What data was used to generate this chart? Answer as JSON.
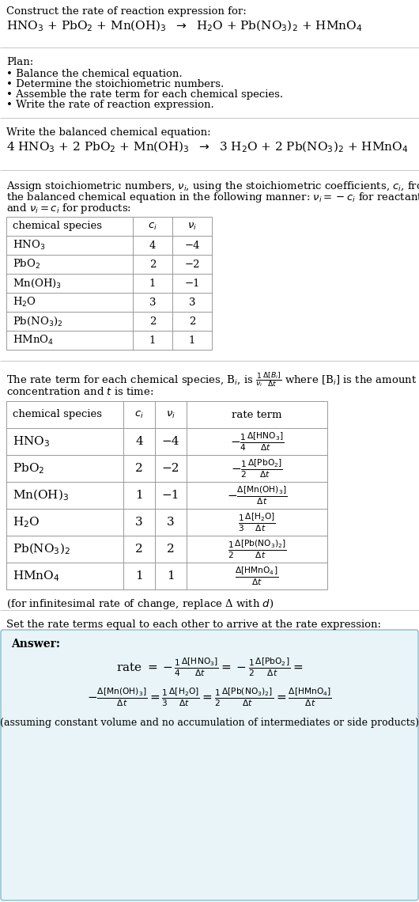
{
  "bg_color": "#ffffff",
  "answer_box_color": "#e8f4f8",
  "answer_box_border": "#88bbcc",
  "section_line_color": "#cccccc",
  "table_line_color": "#999999",
  "font_family": "DejaVu Serif",
  "base_font_size": 9.5,
  "title": "Construct the rate of reaction expression for:",
  "unbalanced_reaction": "HNO$_3$ + PbO$_2$ + Mn(OH)$_3$  $\\rightarrow$  H$_2$O + Pb(NO$_3$)$_2$ + HMnO$_4$",
  "plan_header": "Plan:",
  "plan_items": [
    "• Balance the chemical equation.",
    "• Determine the stoichiometric numbers.",
    "• Assemble the rate term for each chemical species.",
    "• Write the rate of reaction expression."
  ],
  "balanced_header": "Write the balanced chemical equation:",
  "balanced_reaction": "4 HNO$_3$ + 2 PbO$_2$ + Mn(OH)$_3$  $\\rightarrow$  3 H$_2$O + 2 Pb(NO$_3$)$_2$ + HMnO$_4$",
  "stoich_para": [
    "Assign stoichiometric numbers, $\\nu_i$, using the stoichiometric coefficients, $c_i$, from",
    "the balanced chemical equation in the following manner: $\\nu_i = -c_i$ for reactants",
    "and $\\nu_i = c_i$ for products:"
  ],
  "table1_headers": [
    "chemical species",
    "$c_i$",
    "$\\nu_i$"
  ],
  "table1_rows": [
    [
      "HNO$_3$",
      "4",
      "−4"
    ],
    [
      "PbO$_2$",
      "2",
      "−2"
    ],
    [
      "Mn(OH)$_3$",
      "1",
      "−1"
    ],
    [
      "H$_2$O",
      "3",
      "3"
    ],
    [
      "Pb(NO$_3$)$_2$",
      "2",
      "2"
    ],
    [
      "HMnO$_4$",
      "1",
      "1"
    ]
  ],
  "rate_para": [
    "The rate term for each chemical species, B$_i$, is $\\frac{1}{\\nu_i}\\frac{\\Delta[B_i]}{\\Delta t}$ where [B$_i$] is the amount",
    "concentration and $t$ is time:"
  ],
  "table2_headers": [
    "chemical species",
    "$c_i$",
    "$\\nu_i$",
    "rate term"
  ],
  "table2_rows": [
    [
      "HNO$_3$",
      "4",
      "−4",
      "$-\\frac{1}{4}\\frac{\\Delta[\\mathrm{HNO_3}]}{\\Delta t}$"
    ],
    [
      "PbO$_2$",
      "2",
      "−2",
      "$-\\frac{1}{2}\\frac{\\Delta[\\mathrm{PbO_2}]}{\\Delta t}$"
    ],
    [
      "Mn(OH)$_3$",
      "1",
      "−1",
      "$-\\frac{\\Delta[\\mathrm{Mn(OH)_3}]}{\\Delta t}$"
    ],
    [
      "H$_2$O",
      "3",
      "3",
      "$\\frac{1}{3}\\frac{\\Delta[\\mathrm{H_2O}]}{\\Delta t}$"
    ],
    [
      "Pb(NO$_3$)$_2$",
      "2",
      "2",
      "$\\frac{1}{2}\\frac{\\Delta[\\mathrm{Pb(NO_3)_2}]}{\\Delta t}$"
    ],
    [
      "HMnO$_4$",
      "1",
      "1",
      "$\\frac{\\Delta[\\mathrm{HMnO_4}]}{\\Delta t}$"
    ]
  ],
  "infinitesimal_note": "(for infinitesimal rate of change, replace Δ with $d$)",
  "set_equal_text": "Set the rate terms equal to each other to arrive at the rate expression:",
  "answer_label": "Answer:",
  "answer_rate_line1": "rate $= -\\frac{1}{4}\\frac{\\Delta[\\mathrm{HNO_3}]}{\\Delta t} = -\\frac{1}{2}\\frac{\\Delta[\\mathrm{PbO_2}]}{\\Delta t} =$",
  "answer_rate_line2": "$-\\frac{\\Delta[\\mathrm{Mn(OH)_3}]}{\\Delta t} = \\frac{1}{3}\\frac{\\Delta[\\mathrm{H_2O}]}{\\Delta t} = \\frac{1}{2}\\frac{\\Delta[\\mathrm{Pb(NO_3)_2}]}{\\Delta t} = \\frac{\\Delta[\\mathrm{HMnO_4}]}{\\Delta t}$",
  "assuming_note": "(assuming constant volume and no accumulation of intermediates or side products)"
}
